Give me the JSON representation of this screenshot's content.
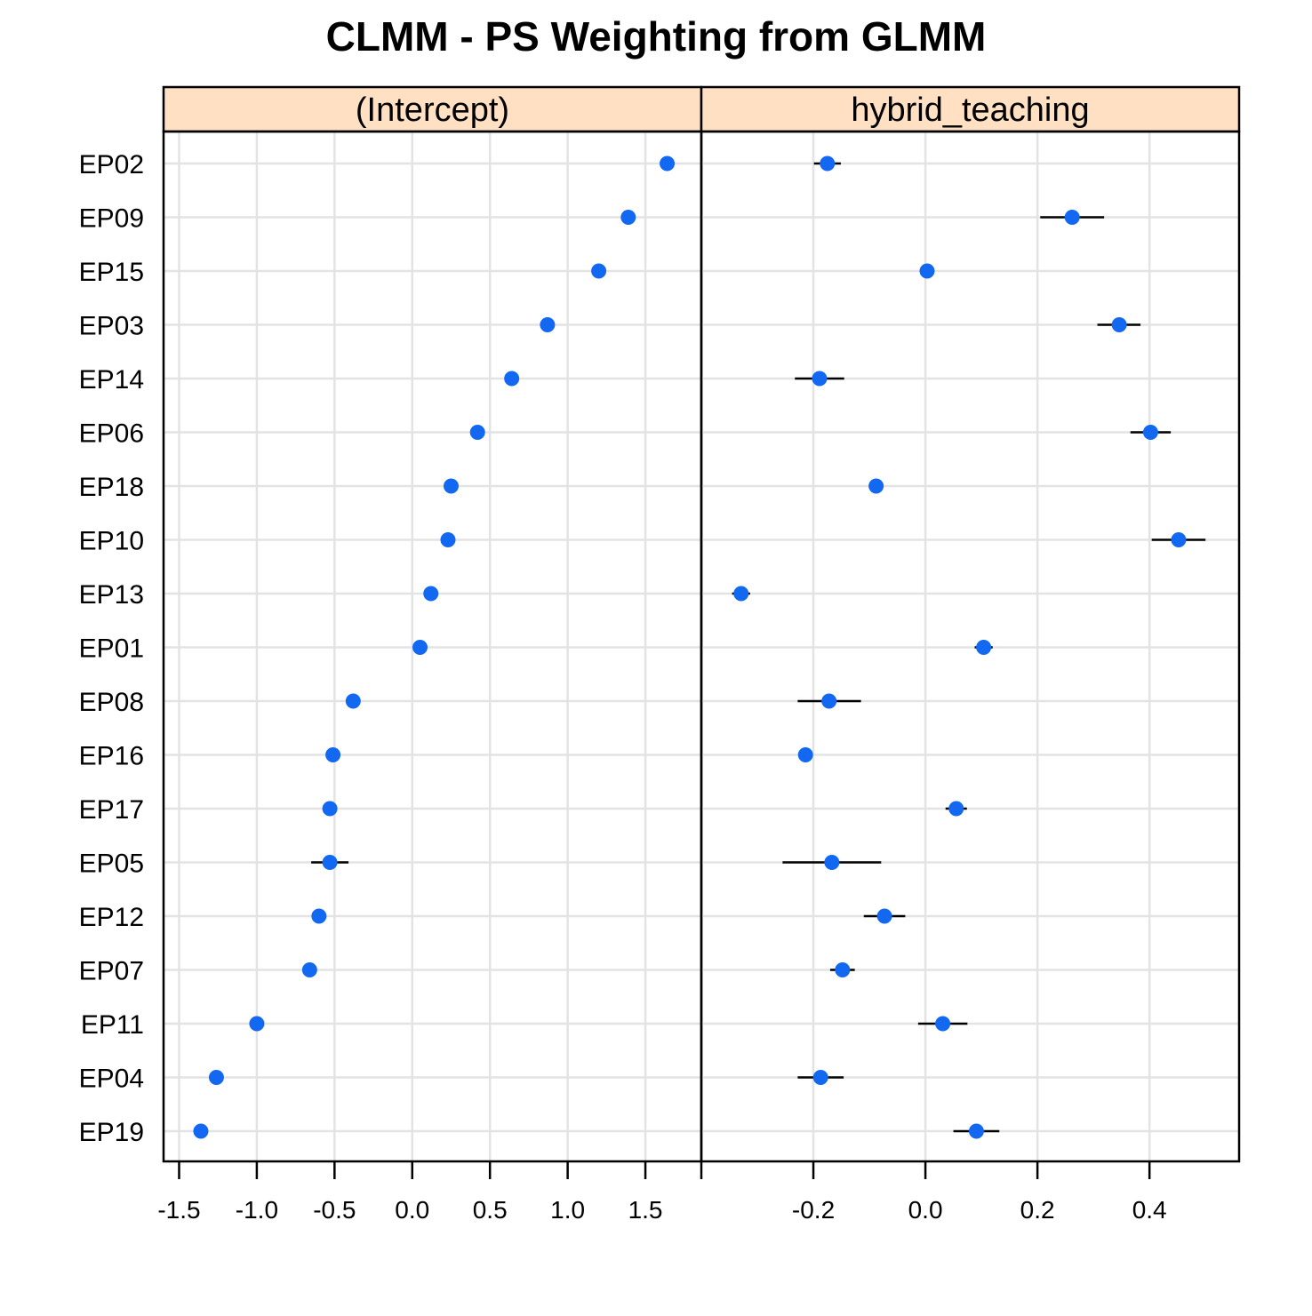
{
  "colors": {
    "point": "#1368f2",
    "strip_fill": "#ffe0c2",
    "gridline": "#e3e3e3",
    "frame": "#000000",
    "errorbar": "#000000"
  },
  "chart_data": {
    "type": "scatter",
    "title": "CLMM - PS Weighting from GLMM",
    "categories": [
      "EP02",
      "EP09",
      "EP15",
      "EP03",
      "EP14",
      "EP06",
      "EP18",
      "EP10",
      "EP13",
      "EP01",
      "EP08",
      "EP16",
      "EP17",
      "EP05",
      "EP12",
      "EP07",
      "EP11",
      "EP04",
      "EP19"
    ],
    "grid": true,
    "panels": [
      {
        "name": "(Intercept)",
        "xlim": [
          -1.6,
          1.86
        ],
        "ticks": [
          -1.5,
          -1.0,
          -0.5,
          0.0,
          0.5,
          1.0,
          1.5
        ],
        "tick_labels": [
          "-1.5",
          "-1.0",
          "-0.5",
          "0.0",
          "0.5",
          "1.0",
          "1.5"
        ],
        "values": [
          1.64,
          1.39,
          1.2,
          0.87,
          0.64,
          0.42,
          0.25,
          0.23,
          0.12,
          0.05,
          -0.38,
          -0.51,
          -0.53,
          -0.53,
          -0.6,
          -0.66,
          -1.0,
          -1.26,
          -1.36
        ],
        "lower": [
          1.64,
          1.39,
          1.2,
          0.87,
          0.64,
          0.42,
          0.25,
          0.23,
          0.12,
          0.05,
          -0.4,
          -0.51,
          -0.53,
          -0.65,
          -0.6,
          -0.66,
          -1.0,
          -1.26,
          -1.36
        ],
        "upper": [
          1.64,
          1.39,
          1.2,
          0.87,
          0.64,
          0.42,
          0.25,
          0.23,
          0.12,
          0.05,
          -0.36,
          -0.51,
          -0.53,
          -0.41,
          -0.6,
          -0.66,
          -1.0,
          -1.26,
          -1.36
        ]
      },
      {
        "name": "hybrid_teaching",
        "xlim": [
          -0.4,
          0.56
        ],
        "ticks": [
          -0.4,
          -0.2,
          0.0,
          0.2,
          0.4
        ],
        "tick_labels": [
          "",
          "-0.2",
          "0.0",
          "0.2",
          "0.4"
        ],
        "values": [
          -0.175,
          0.262,
          0.003,
          0.346,
          -0.189,
          0.402,
          -0.088,
          0.452,
          -0.329,
          0.104,
          -0.172,
          -0.214,
          0.055,
          -0.167,
          -0.073,
          -0.148,
          0.031,
          -0.187,
          0.091
        ],
        "lower": [
          -0.199,
          0.205,
          0.003,
          0.307,
          -0.233,
          0.366,
          -0.094,
          0.404,
          -0.345,
          0.088,
          -0.228,
          -0.214,
          0.036,
          -0.255,
          -0.11,
          -0.17,
          -0.013,
          -0.228,
          0.05
        ],
        "upper": [
          -0.151,
          0.319,
          0.003,
          0.384,
          -0.145,
          0.438,
          -0.082,
          0.5,
          -0.313,
          0.12,
          -0.115,
          -0.214,
          0.074,
          -0.079,
          -0.036,
          -0.126,
          0.075,
          -0.146,
          0.132
        ]
      }
    ]
  }
}
